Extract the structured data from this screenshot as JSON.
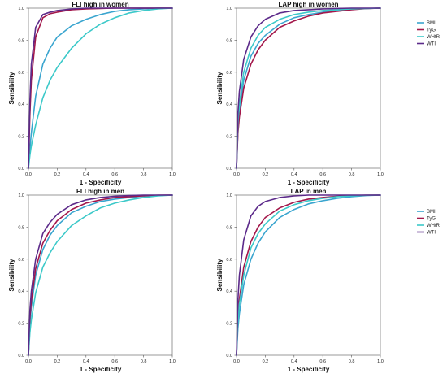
{
  "chart_data": [
    {
      "type": "line",
      "title": "FLI high in women",
      "xlabel": "1 - Specificity",
      "ylabel": "Sensibility",
      "xlim": [
        0,
        1
      ],
      "ylim": [
        0,
        1
      ],
      "ticks": [
        "0.0",
        "0.2",
        "0.4",
        "0.6",
        "0.8",
        "1.0"
      ],
      "grid": false,
      "legend": null,
      "x": [
        0,
        0.01,
        0.02,
        0.05,
        0.1,
        0.15,
        0.2,
        0.3,
        0.4,
        0.5,
        0.6,
        0.7,
        0.8,
        0.9,
        1.0
      ],
      "series": [
        {
          "name": "BMI",
          "color": "#3aa5cf",
          "values": [
            0,
            0.12,
            0.22,
            0.45,
            0.65,
            0.75,
            0.82,
            0.89,
            0.93,
            0.96,
            0.98,
            0.99,
            0.995,
            1.0,
            1.0
          ]
        },
        {
          "name": "TyG",
          "color": "#a3174a",
          "values": [
            0,
            0.33,
            0.55,
            0.82,
            0.94,
            0.965,
            0.975,
            0.99,
            0.995,
            0.998,
            1.0,
            1.0,
            1.0,
            1.0,
            1.0
          ]
        },
        {
          "name": "WHtR",
          "color": "#3cc9c9",
          "values": [
            0,
            0.08,
            0.14,
            0.27,
            0.44,
            0.55,
            0.63,
            0.75,
            0.84,
            0.9,
            0.94,
            0.97,
            0.985,
            0.995,
            1.0
          ]
        },
        {
          "name": "WTI",
          "color": "#5c2a8a",
          "values": [
            0,
            0.42,
            0.65,
            0.88,
            0.96,
            0.975,
            0.985,
            0.995,
            1.0,
            1.0,
            1.0,
            1.0,
            1.0,
            1.0,
            1.0
          ]
        }
      ]
    },
    {
      "type": "line",
      "title": "LAP high in women",
      "xlabel": "1 - Specificity",
      "ylabel": "Sensibility",
      "xlim": [
        0,
        1
      ],
      "ylim": [
        0,
        1
      ],
      "ticks": [
        "0.0",
        "0.2",
        "0.4",
        "0.6",
        "0.8",
        "1.0"
      ],
      "grid": false,
      "legend": "right",
      "x": [
        0,
        0.01,
        0.02,
        0.05,
        0.1,
        0.15,
        0.2,
        0.3,
        0.4,
        0.5,
        0.6,
        0.7,
        0.8,
        0.9,
        1.0
      ],
      "series": [
        {
          "name": "BMI",
          "color": "#3aa5cf",
          "values": [
            0,
            0.25,
            0.36,
            0.55,
            0.7,
            0.78,
            0.83,
            0.9,
            0.94,
            0.96,
            0.975,
            0.985,
            0.993,
            0.998,
            1.0
          ]
        },
        {
          "name": "TyG",
          "color": "#a3174a",
          "values": [
            0,
            0.22,
            0.32,
            0.5,
            0.65,
            0.74,
            0.8,
            0.88,
            0.92,
            0.95,
            0.97,
            0.98,
            0.99,
            0.997,
            1.0
          ]
        },
        {
          "name": "WHtR",
          "color": "#3cc9c9",
          "values": [
            0,
            0.28,
            0.4,
            0.6,
            0.75,
            0.83,
            0.88,
            0.93,
            0.96,
            0.975,
            0.985,
            0.99,
            0.995,
            0.998,
            1.0
          ]
        },
        {
          "name": "WTI",
          "color": "#5c2a8a",
          "values": [
            0,
            0.35,
            0.48,
            0.68,
            0.82,
            0.89,
            0.93,
            0.97,
            0.985,
            0.99,
            0.995,
            0.998,
            1.0,
            1.0,
            1.0
          ]
        }
      ]
    },
    {
      "type": "line",
      "title": "FLI high in men",
      "xlabel": "1 - Specificity",
      "ylabel": "Sensibility",
      "xlim": [
        0,
        1
      ],
      "ylim": [
        0,
        1
      ],
      "ticks": [
        "0.0",
        "0.2",
        "0.4",
        "0.6",
        "0.8",
        "1.0"
      ],
      "grid": false,
      "legend": null,
      "x": [
        0,
        0.01,
        0.02,
        0.05,
        0.1,
        0.15,
        0.2,
        0.3,
        0.4,
        0.5,
        0.6,
        0.7,
        0.8,
        0.9,
        1.0
      ],
      "series": [
        {
          "name": "BMI",
          "color": "#3aa5cf",
          "values": [
            0,
            0.2,
            0.3,
            0.5,
            0.66,
            0.75,
            0.81,
            0.89,
            0.93,
            0.96,
            0.975,
            0.985,
            0.993,
            0.998,
            1.0
          ]
        },
        {
          "name": "TyG",
          "color": "#a3174a",
          "values": [
            0,
            0.23,
            0.34,
            0.54,
            0.7,
            0.78,
            0.84,
            0.91,
            0.95,
            0.97,
            0.985,
            0.99,
            0.996,
            0.999,
            1.0
          ]
        },
        {
          "name": "WHtR",
          "color": "#3cc9c9",
          "values": [
            0,
            0.14,
            0.22,
            0.39,
            0.55,
            0.64,
            0.71,
            0.81,
            0.87,
            0.92,
            0.95,
            0.97,
            0.985,
            0.995,
            1.0
          ]
        },
        {
          "name": "WTI",
          "color": "#5c2a8a",
          "values": [
            0,
            0.28,
            0.4,
            0.6,
            0.76,
            0.83,
            0.88,
            0.94,
            0.97,
            0.985,
            0.993,
            0.997,
            1.0,
            1.0,
            1.0
          ]
        }
      ]
    },
    {
      "type": "line",
      "title": "LAP in men",
      "xlabel": "1 - Specificity",
      "ylabel": "Sensibility",
      "xlim": [
        0,
        1
      ],
      "ylim": [
        0,
        1
      ],
      "ticks": [
        "0.0",
        "0.2",
        "0.4",
        "0.6",
        "0.8",
        "1.0"
      ],
      "grid": false,
      "legend": "right",
      "x": [
        0,
        0.01,
        0.02,
        0.05,
        0.1,
        0.15,
        0.2,
        0.3,
        0.4,
        0.5,
        0.6,
        0.7,
        0.8,
        0.9,
        1.0
      ],
      "series": [
        {
          "name": "BMI",
          "color": "#3aa5cf",
          "values": [
            0,
            0.17,
            0.26,
            0.44,
            0.6,
            0.7,
            0.77,
            0.86,
            0.91,
            0.945,
            0.965,
            0.98,
            0.99,
            0.997,
            1.0
          ]
        },
        {
          "name": "TyG",
          "color": "#a3174a",
          "values": [
            0,
            0.24,
            0.35,
            0.55,
            0.71,
            0.8,
            0.86,
            0.92,
            0.955,
            0.975,
            0.985,
            0.993,
            0.997,
            0.999,
            1.0
          ]
        },
        {
          "name": "WHtR",
          "color": "#3cc9c9",
          "values": [
            0,
            0.22,
            0.32,
            0.5,
            0.67,
            0.76,
            0.82,
            0.9,
            0.94,
            0.965,
            0.98,
            0.99,
            0.995,
            0.999,
            1.0
          ]
        },
        {
          "name": "WTI",
          "color": "#5c2a8a",
          "values": [
            0,
            0.35,
            0.5,
            0.72,
            0.87,
            0.93,
            0.96,
            0.985,
            0.995,
            1.0,
            1.0,
            1.0,
            1.0,
            1.0,
            1.0
          ]
        }
      ]
    }
  ]
}
